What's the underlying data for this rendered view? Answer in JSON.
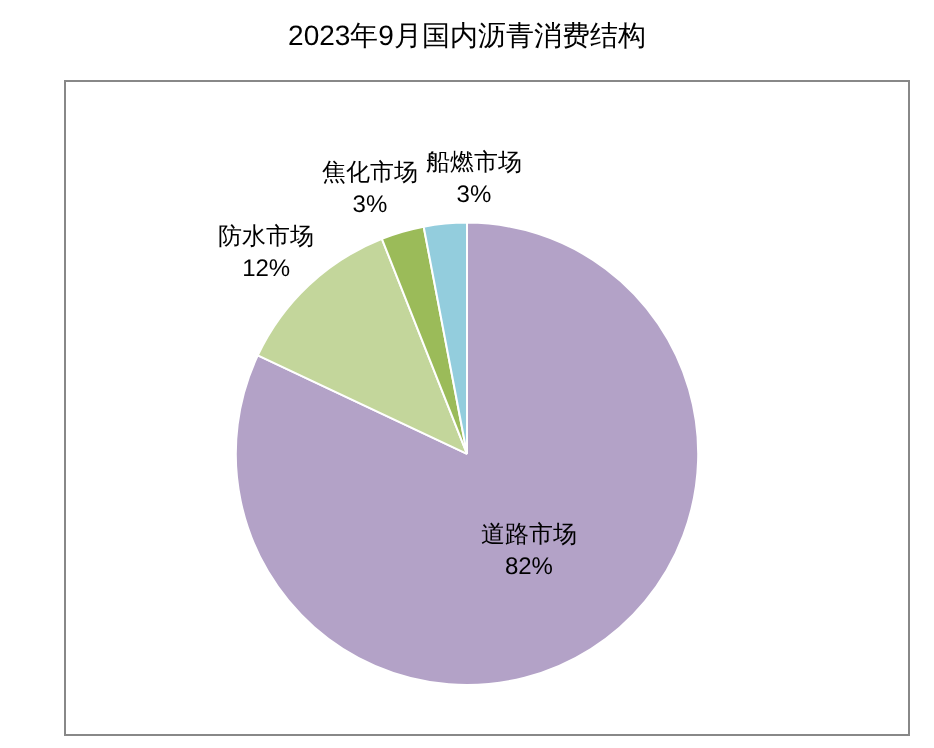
{
  "chart_data": {
    "type": "pie",
    "title": "2023年9月国内沥青消费结构",
    "categories": [
      "道路市场",
      "防水市场",
      "焦化市场",
      "船燃市场"
    ],
    "values": [
      82,
      12,
      3,
      3
    ],
    "colors": [
      "#b3a2c7",
      "#c3d69b",
      "#9bbb59",
      "#93cddd"
    ],
    "value_labels": [
      "82%",
      "12%",
      "3%",
      "3%"
    ],
    "legend": false
  }
}
